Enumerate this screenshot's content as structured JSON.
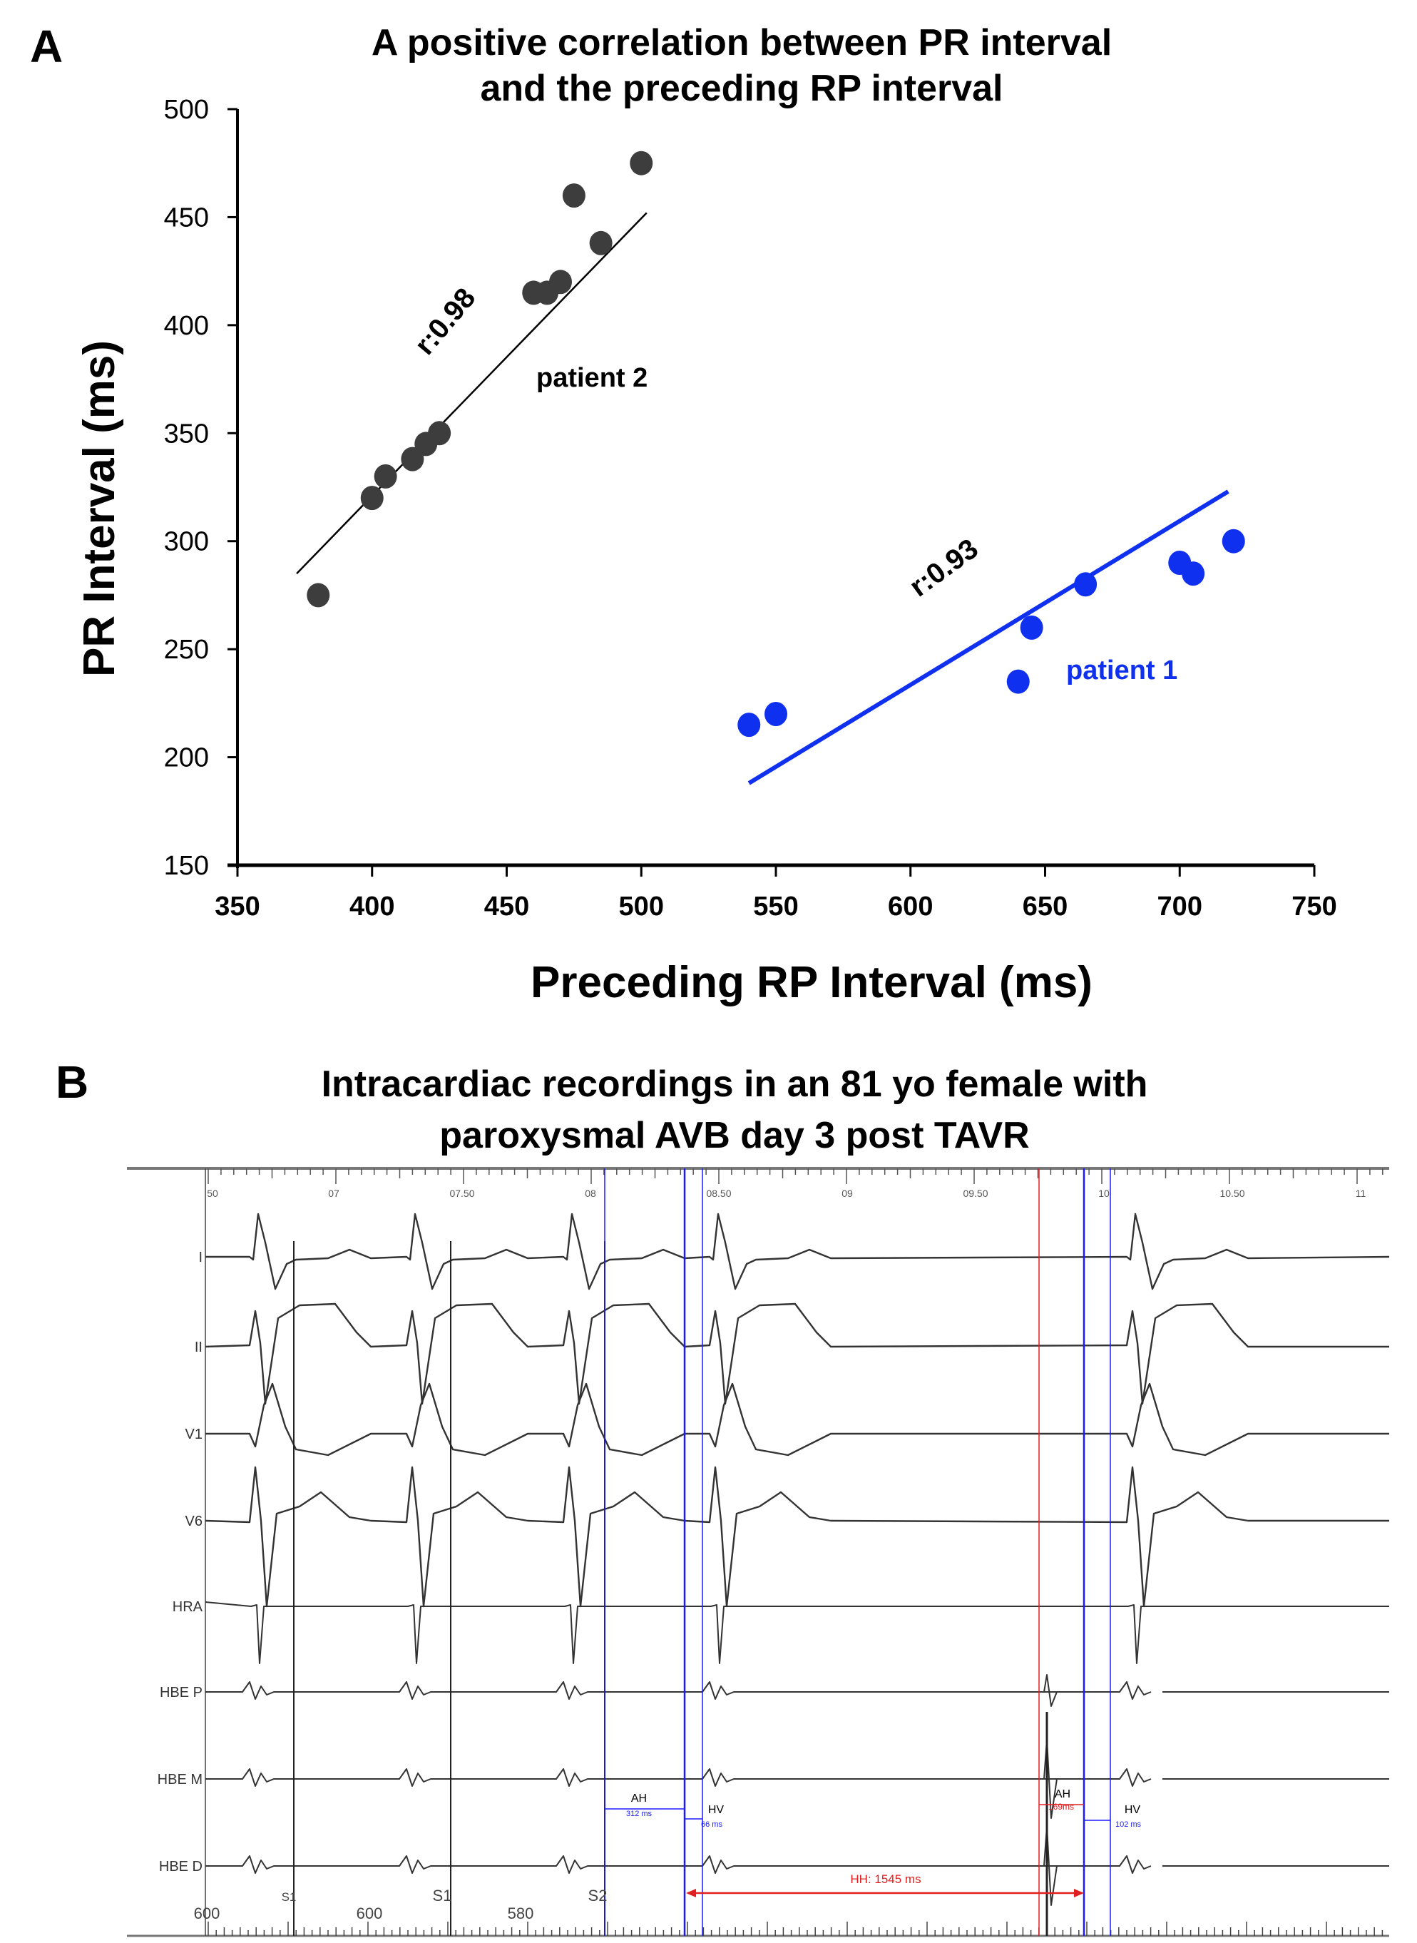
{
  "panel_a": {
    "letter": "A",
    "title_line1": "A positive correlation between PR interval",
    "title_line2": "and the preceding RP interval"
  },
  "panel_b": {
    "letter": "B",
    "title_line1": "Intracardiac recordings in an 81 yo female with",
    "title_line2": "paroxysmal AVB day 3 post TAVR",
    "time_ruler_labels": [
      "50",
      "07",
      "07.50",
      "08",
      "08.50",
      "09",
      "09.50",
      "10",
      "10.50",
      "11"
    ],
    "channels": [
      "I",
      "II",
      "V1",
      "V6",
      "HRA",
      "HBE P",
      "HBE M",
      "HBE D"
    ],
    "stim_labels": [
      "S1",
      "S1",
      "S2"
    ],
    "cycle_lengths": [
      "600",
      "600",
      "580"
    ],
    "annotations": {
      "ah1_label": "AH",
      "ah1_value": "312 ms",
      "hv1_label": "HV",
      "hv1_value": "66 ms",
      "ah2_label": "AH",
      "ah2_value": "169ms",
      "hv2_label": "HV",
      "hv2_value": "102 ms",
      "hh_label": "HH: 1545 ms"
    },
    "colors": {
      "trace": "#333333",
      "blue_caliper": "#1a1aff",
      "red_caliper": "#e02020"
    }
  },
  "chart_data": [
    {
      "type": "scatter",
      "title": "A positive correlation between PR interval and the preceding RP interval",
      "xlabel": "Preceding RP Interval (ms)",
      "ylabel": "PR Interval (ms)",
      "xlim": [
        350,
        750
      ],
      "ylim": [
        150,
        500
      ],
      "xticks": [
        350,
        400,
        450,
        500,
        550,
        600,
        650,
        700,
        750
      ],
      "yticks": [
        150,
        200,
        250,
        300,
        350,
        400,
        450,
        500
      ],
      "grid": false,
      "series": [
        {
          "name": "patient 2",
          "color": "#3d3d3d",
          "x": [
            380,
            400,
            405,
            415,
            420,
            425,
            460,
            465,
            470,
            475,
            485,
            500
          ],
          "y": [
            275,
            320,
            330,
            338,
            345,
            350,
            415,
            415,
            420,
            460,
            438,
            475
          ],
          "fit_line": {
            "x": [
              372,
              502
            ],
            "y": [
              285,
              452
            ]
          },
          "r_label": "r:0.98",
          "label": "patient 2"
        },
        {
          "name": "patient 1",
          "color": "#1030f0",
          "x": [
            540,
            550,
            640,
            645,
            665,
            700,
            705,
            720
          ],
          "y": [
            215,
            220,
            235,
            260,
            280,
            290,
            285,
            300
          ],
          "fit_line": {
            "x": [
              540,
              718
            ],
            "y": [
              188,
              323
            ]
          },
          "r_label": "r:0.93",
          "label": "patient 1"
        }
      ]
    }
  ]
}
